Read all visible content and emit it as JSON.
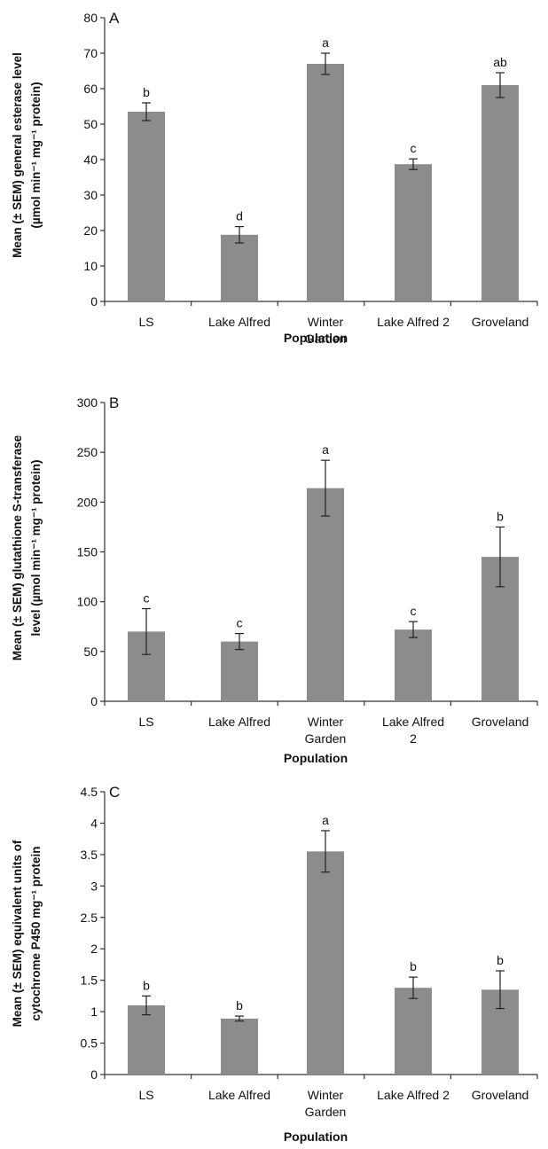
{
  "chart_data": [
    {
      "type": "bar",
      "panel": "A",
      "categories": [
        [
          "LS"
        ],
        [
          "Lake Alfred"
        ],
        [
          "Winter",
          "Garden"
        ],
        [
          "Lake Alfred 2"
        ],
        [
          "Groveland"
        ]
      ],
      "values": [
        53.5,
        18.8,
        67.0,
        38.7,
        61.0
      ],
      "errors": [
        2.5,
        2.3,
        3.0,
        1.5,
        3.5
      ],
      "significance": [
        "b",
        "d",
        "a",
        "c",
        "ab"
      ],
      "xlabel": "Population",
      "ylabel": [
        "Mean (± SEM) general esterase level",
        "(µmol min⁻¹ mg⁻¹ protein)"
      ],
      "ylim": [
        0,
        80
      ],
      "yticks": [
        0,
        10,
        20,
        30,
        40,
        50,
        60,
        70,
        80
      ],
      "ytick_labels": [
        "0",
        "10",
        "20",
        "30",
        "40",
        "50",
        "60",
        "70",
        "80"
      ],
      "grid": false,
      "bar_color": "#8c8c8c"
    },
    {
      "type": "bar",
      "panel": "B",
      "categories": [
        [
          "LS"
        ],
        [
          "Lake Alfred"
        ],
        [
          "Winter",
          "Garden"
        ],
        [
          "Lake Alfred",
          "2"
        ],
        [
          "Groveland"
        ]
      ],
      "values": [
        70,
        60,
        214,
        72,
        145
      ],
      "errors": [
        23,
        8,
        28,
        8,
        30
      ],
      "significance": [
        "c",
        "c",
        "a",
        "c",
        "b"
      ],
      "xlabel": "Population",
      "ylabel": [
        "Mean (± SEM) glutathione S-transferase",
        "level (µmol min⁻¹ mg⁻¹ protein)"
      ],
      "ylim": [
        0,
        300
      ],
      "yticks": [
        0,
        50,
        100,
        150,
        200,
        250,
        300
      ],
      "ytick_labels": [
        "0",
        "50",
        "100",
        "150",
        "200",
        "250",
        "300"
      ],
      "grid": false,
      "bar_color": "#8c8c8c"
    },
    {
      "type": "bar",
      "panel": "C",
      "categories": [
        [
          "LS"
        ],
        [
          "Lake Alfred"
        ],
        [
          "Winter",
          "Garden"
        ],
        [
          "Lake Alfred 2"
        ],
        [
          "Groveland"
        ]
      ],
      "values": [
        1.1,
        0.89,
        3.55,
        1.38,
        1.35
      ],
      "errors": [
        0.15,
        0.04,
        0.33,
        0.17,
        0.3
      ],
      "significance": [
        "b",
        "b",
        "a",
        "b",
        "b"
      ],
      "xlabel": "Population",
      "ylabel": [
        "Mean (± SEM) equivalent units of",
        "cytochrome P450 mg⁻¹ protein"
      ],
      "ylim": [
        0,
        4.5
      ],
      "yticks": [
        0,
        0.5,
        1,
        1.5,
        2,
        2.5,
        3,
        3.5,
        4,
        4.5
      ],
      "ytick_labels": [
        "0",
        "0.5",
        "1",
        "1.5",
        "2",
        "2.5",
        "3",
        "3.5",
        "4",
        "4.5"
      ],
      "grid": false,
      "bar_color": "#8c8c8c"
    }
  ]
}
